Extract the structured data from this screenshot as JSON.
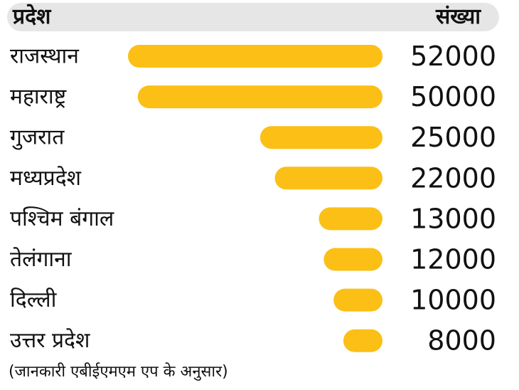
{
  "header": {
    "left": "प्रदेश",
    "right": "संख्या"
  },
  "footer": "(जानकारी एबीईएमएम एप के अनुसार)",
  "colors": {
    "bar": "#fbbf16",
    "header_bg": "#e6e6e6",
    "text": "#111111"
  },
  "chart_data": {
    "type": "bar",
    "orientation": "horizontal",
    "categories": [
      "राजस्थान",
      "महाराष्ट्र",
      "गुजरात",
      "मध्यप्रदेश",
      "पश्चिम बंगाल",
      "तेलंगाना",
      "दिल्ली",
      "उत्तर प्रदेश"
    ],
    "values": [
      52000,
      50000,
      25000,
      22000,
      13000,
      12000,
      10000,
      8000
    ],
    "value_labels": [
      "52000",
      "50000",
      "25000",
      "22000",
      "13000",
      "12000",
      "10000",
      "8000"
    ],
    "xlabel": "",
    "ylabel": "",
    "grid": false,
    "legend": "none"
  }
}
